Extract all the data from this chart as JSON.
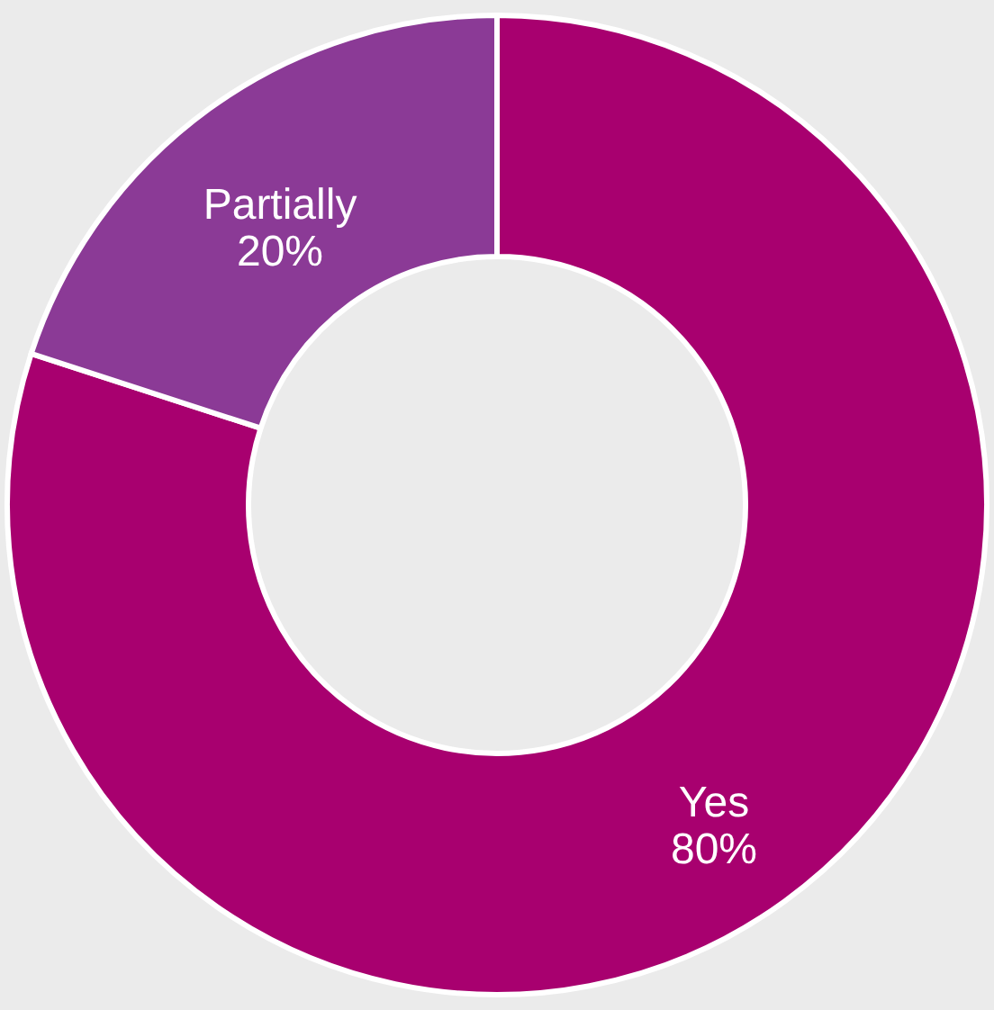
{
  "chart_data": {
    "type": "donut",
    "categories": [
      "Yes",
      "Partially"
    ],
    "values": [
      80,
      20
    ],
    "colors": [
      "#a8006f",
      "#8b3a96"
    ],
    "value_labels": [
      "80%",
      "20%"
    ]
  }
}
